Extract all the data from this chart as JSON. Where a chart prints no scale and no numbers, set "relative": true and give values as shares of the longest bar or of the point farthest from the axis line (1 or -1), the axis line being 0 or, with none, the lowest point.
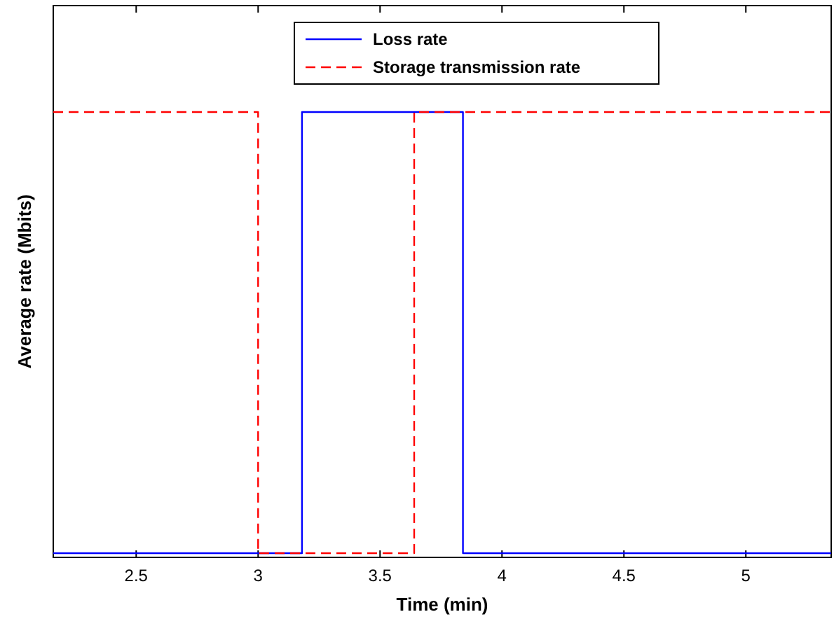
{
  "chart_data": {
    "type": "step",
    "xlabel": "Time (min)",
    "ylabel": "Average rate (Mbits)",
    "relative": true,
    "xlim": [
      2.16,
      5.35
    ],
    "xticks": [
      2.5,
      3,
      3.5,
      4,
      4.5,
      5
    ],
    "legend": "top",
    "grid": false,
    "series": [
      {
        "name": "Loss rate",
        "color": "#0000ff",
        "line_style": "solid",
        "x": [
          2.16,
          3.18,
          3.84,
          5.35
        ],
        "values": [
          0,
          1,
          0,
          0
        ]
      },
      {
        "name": "Storage transmission rate",
        "color": "#ff0000",
        "line_style": "dashed",
        "x": [
          2.16,
          3.0,
          3.64,
          5.35
        ],
        "values": [
          1,
          0,
          1,
          1
        ]
      }
    ]
  }
}
